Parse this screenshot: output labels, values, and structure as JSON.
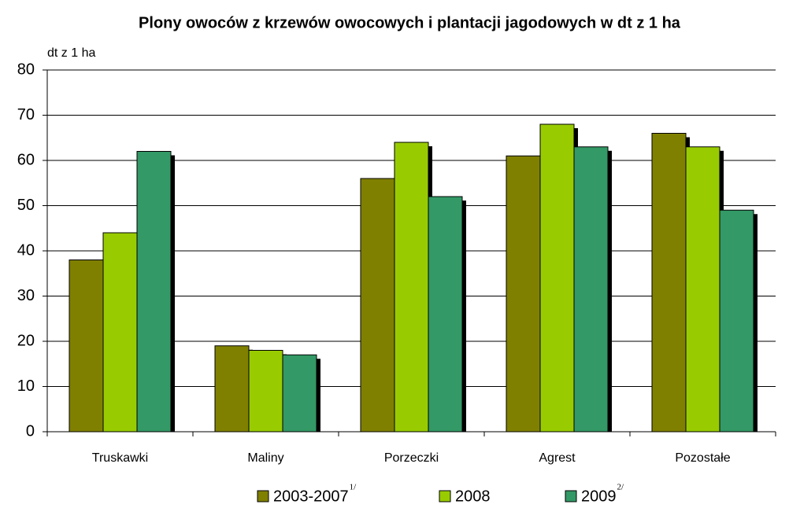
{
  "chart_data": {
    "type": "bar",
    "title": "Plony owoców z krzewów owocowych i plantacji jagodowych w dt z 1 ha",
    "y_axis_label": "dt z 1 ha",
    "categories": [
      "Truskawki",
      "Maliny",
      "Porzeczki",
      "Agrest",
      "Pozostałe"
    ],
    "series": [
      {
        "name": "2003-2007",
        "note": "1/",
        "color": "#808000",
        "values": [
          38,
          19,
          56,
          61,
          66
        ]
      },
      {
        "name": "2008",
        "color": "#99cc00",
        "values": [
          44,
          18,
          64,
          68,
          63
        ]
      },
      {
        "name": "2009",
        "note": "2/",
        "color": "#339966",
        "values": [
          62,
          17,
          52,
          63,
          49
        ]
      }
    ],
    "ylim": [
      0,
      80
    ],
    "yticks": [
      0,
      10,
      20,
      30,
      40,
      50,
      60,
      70,
      80
    ],
    "grid": true
  }
}
